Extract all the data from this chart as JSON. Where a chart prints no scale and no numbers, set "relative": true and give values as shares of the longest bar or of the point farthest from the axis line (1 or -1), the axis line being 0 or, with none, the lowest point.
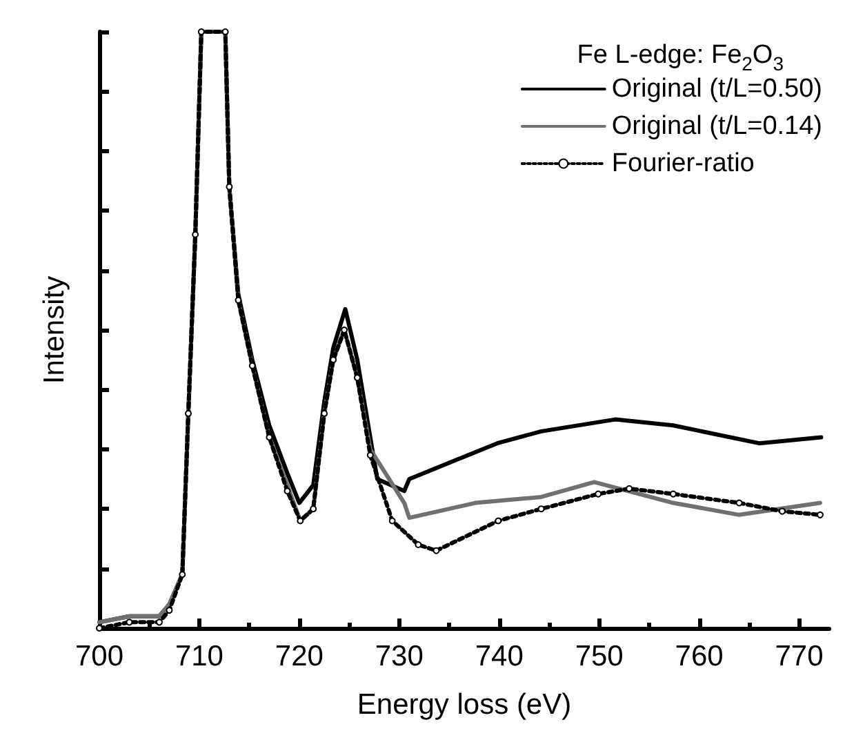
{
  "chart_data": {
    "type": "line",
    "relative": true,
    "xlabel": "Energy loss (eV)",
    "ylabel": "Intensity",
    "legend_title": "Fe L-edge: Fe$_{2}$O$_{3}$",
    "legend": "top right",
    "grid": false,
    "tick_labels": "x",
    "xlim": [
      700,
      773
    ],
    "xticks": [
      700,
      710,
      720,
      730,
      740,
      750,
      760,
      770
    ],
    "series": [
      {
        "name": "Original (t/L=0.50)",
        "color": "#000000",
        "line_style": "solid",
        "marker": "none",
        "x": [
          700,
          703,
          706,
          707,
          708.3,
          708.9,
          709.6,
          710.2,
          712.6,
          713.0,
          713.9,
          715.3,
          717,
          718.8,
          720,
          721.4,
          722.5,
          723.4,
          724.6,
          725.8,
          727.8,
          730.5,
          731,
          735.4,
          739.8,
          744.2,
          751.6,
          757.4,
          766,
          772.2
        ],
        "values": [
          0.01,
          0.02,
          0.02,
          0.04,
          0.09,
          0.36,
          0.66,
          1.0,
          1.0,
          0.74,
          0.56,
          0.45,
          0.34,
          0.26,
          0.21,
          0.24,
          0.38,
          0.47,
          0.535,
          0.45,
          0.25,
          0.23,
          0.25,
          0.28,
          0.31,
          0.33,
          0.35,
          0.34,
          0.31,
          0.32
        ]
      },
      {
        "name": "Original (t/L=0.14)",
        "color": "#707070",
        "line_style": "solid",
        "marker": "none",
        "x": [
          700,
          703,
          706,
          707,
          708.3,
          708.9,
          709.6,
          710.2,
          712.6,
          713.0,
          713.9,
          715.3,
          717,
          718.8,
          720.1,
          721.4,
          722.5,
          723.4,
          724.5,
          725.8,
          727.1,
          730.5,
          731,
          737.6,
          744.2,
          749.5,
          757.4,
          764,
          772.1
        ],
        "values": [
          0.01,
          0.02,
          0.02,
          0.04,
          0.09,
          0.36,
          0.66,
          1.0,
          1.0,
          0.74,
          0.55,
          0.44,
          0.32,
          0.24,
          0.18,
          0.2,
          0.36,
          0.45,
          0.5,
          0.42,
          0.3,
          0.21,
          0.185,
          0.21,
          0.22,
          0.245,
          0.21,
          0.19,
          0.21
        ]
      },
      {
        "name": "Fourier-ratio",
        "color": "#000000",
        "line_style": "dotted",
        "marker": "circle",
        "x": [
          700,
          703,
          706,
          707,
          708.3,
          708.9,
          709.6,
          710.2,
          712.6,
          713.0,
          713.9,
          715.3,
          717,
          718.8,
          720.1,
          721.4,
          722.5,
          723.4,
          724.5,
          725.8,
          727.1,
          729.3,
          731.9,
          733.7,
          739.9,
          744.2,
          749.9,
          753,
          757.4,
          764,
          768.3,
          772.1
        ],
        "values": [
          0.0,
          0.01,
          0.01,
          0.03,
          0.09,
          0.36,
          0.66,
          1.0,
          1.0,
          0.74,
          0.55,
          0.44,
          0.32,
          0.23,
          0.18,
          0.2,
          0.36,
          0.45,
          0.5,
          0.42,
          0.29,
          0.18,
          0.14,
          0.13,
          0.18,
          0.2,
          0.225,
          0.234,
          0.225,
          0.21,
          0.196,
          0.19
        ]
      }
    ]
  }
}
